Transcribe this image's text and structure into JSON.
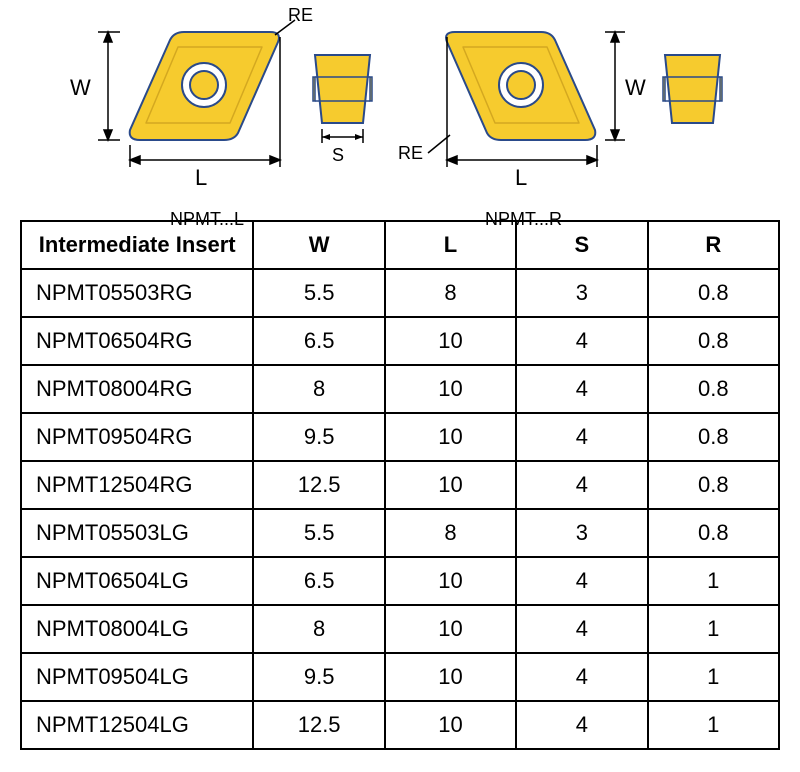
{
  "diagrams": {
    "left": {
      "label": "NPMT...L",
      "re_label": "RE",
      "w_label": "W",
      "l_label": "L",
      "s_label": "S",
      "insert_fill": "#f6cb2e",
      "insert_stroke": "#2a4a8a",
      "stroke_width": 2
    },
    "right": {
      "label": "NPMT...R",
      "re_label": "RE",
      "w_label": "W",
      "l_label": "L",
      "insert_fill": "#f6cb2e",
      "insert_stroke": "#2a4a8a",
      "stroke_width": 2
    }
  },
  "table": {
    "header": {
      "name": "Intermediate Insert",
      "w": "W",
      "l": "L",
      "s": "S",
      "r": "R"
    },
    "rows": [
      {
        "name": "NPMT05503RG",
        "w": "5.5",
        "l": "8",
        "s": "3",
        "r": "0.8"
      },
      {
        "name": "NPMT06504RG",
        "w": "6.5",
        "l": "10",
        "s": "4",
        "r": "0.8"
      },
      {
        "name": "NPMT08004RG",
        "w": "8",
        "l": "10",
        "s": "4",
        "r": "0.8"
      },
      {
        "name": "NPMT09504RG",
        "w": "9.5",
        "l": "10",
        "s": "4",
        "r": "0.8"
      },
      {
        "name": "NPMT12504RG",
        "w": "12.5",
        "l": "10",
        "s": "4",
        "r": "0.8"
      },
      {
        "name": "NPMT05503LG",
        "w": "5.5",
        "l": "8",
        "s": "3",
        "r": "0.8"
      },
      {
        "name": "NPMT06504LG",
        "w": "6.5",
        "l": "10",
        "s": "4",
        "r": "1"
      },
      {
        "name": "NPMT08004LG",
        "w": "8",
        "l": "10",
        "s": "4",
        "r": "1"
      },
      {
        "name": "NPMT09504LG",
        "w": "9.5",
        "l": "10",
        "s": "4",
        "r": "1"
      },
      {
        "name": "NPMT12504LG",
        "w": "12.5",
        "l": "10",
        "s": "4",
        "r": "1"
      }
    ]
  },
  "colors": {
    "border": "#000000",
    "background": "#ffffff",
    "insert_fill": "#f6cb2e",
    "insert_stroke": "#2a4a8a",
    "text": "#000000"
  }
}
